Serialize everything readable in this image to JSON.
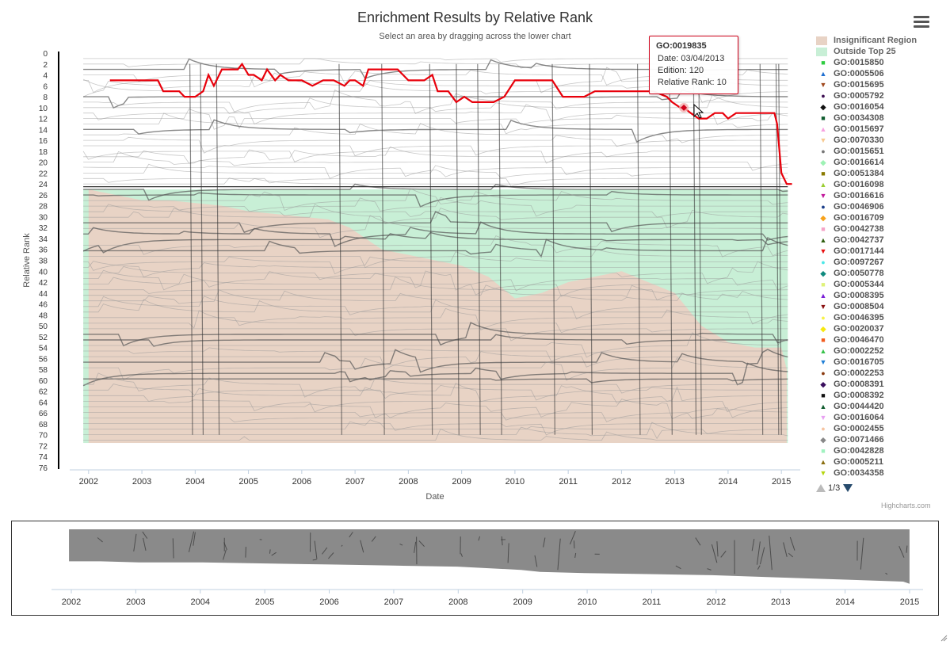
{
  "title": "Enrichment Results by Relative Rank",
  "subtitle": "Select an area by dragging across the lower chart",
  "credits": "Highcharts.com",
  "tooltip": {
    "title": "GO:0019835",
    "date": "Date: 03/04/2013",
    "edition": "Edition: 120",
    "rank": "Relative Rank: 10"
  },
  "legend": {
    "bands": [
      {
        "name": "Insignificant Region",
        "color": "#e8d3c5"
      },
      {
        "name": "Outside Top 25",
        "color": "#c8efd6"
      }
    ],
    "items": [
      {
        "name": "GO:0015850",
        "symbol": "■",
        "color": "#2ecc40"
      },
      {
        "name": "GO:0005506",
        "symbol": "▲",
        "color": "#1f6fd1"
      },
      {
        "name": "GO:0015695",
        "symbol": "▼",
        "color": "#a0491e"
      },
      {
        "name": "GO:0005792",
        "symbol": "●",
        "color": "#3d0f52"
      },
      {
        "name": "GO:0016054",
        "symbol": "◆",
        "color": "#111111"
      },
      {
        "name": "GO:0034308",
        "symbol": "■",
        "color": "#0f5c2e"
      },
      {
        "name": "GO:0015697",
        "symbol": "▲",
        "color": "#f7a1e0"
      },
      {
        "name": "GO:0070330",
        "symbol": "▼",
        "color": "#f7c98f"
      },
      {
        "name": "GO:0015651",
        "symbol": "●",
        "color": "#777777"
      },
      {
        "name": "GO:0016614",
        "symbol": "◆",
        "color": "#9ef2b5"
      },
      {
        "name": "GO:0051384",
        "symbol": "■",
        "color": "#8a7a00"
      },
      {
        "name": "GO:0016098",
        "symbol": "▲",
        "color": "#9acd32"
      },
      {
        "name": "GO:0016616",
        "symbol": "▼",
        "color": "#c2189b"
      },
      {
        "name": "GO:0046906",
        "symbol": "●",
        "color": "#1c3f8a"
      },
      {
        "name": "GO:0016709",
        "symbol": "◆",
        "color": "#f7a21b"
      },
      {
        "name": "GO:0042738",
        "symbol": "■",
        "color": "#f5a3c7"
      },
      {
        "name": "GO:0042737",
        "symbol": "▲",
        "color": "#2f5e0f"
      },
      {
        "name": "GO:0017144",
        "symbol": "▼",
        "color": "#e81010"
      },
      {
        "name": "GO:0097267",
        "symbol": "●",
        "color": "#4de8e8"
      },
      {
        "name": "GO:0050778",
        "symbol": "◆",
        "color": "#0f8a7e"
      },
      {
        "name": "GO:0005344",
        "symbol": "■",
        "color": "#dff279"
      },
      {
        "name": "GO:0008395",
        "symbol": "▲",
        "color": "#7a1fd6"
      },
      {
        "name": "GO:0008504",
        "symbol": "▼",
        "color": "#8a1010"
      },
      {
        "name": "GO:0046395",
        "symbol": "●",
        "color": "#f7f24a"
      },
      {
        "name": "GO:0020037",
        "symbol": "◆",
        "color": "#f7e80f"
      },
      {
        "name": "GO:0046470",
        "symbol": "■",
        "color": "#f25c1f"
      },
      {
        "name": "GO:0002252",
        "symbol": "▲",
        "color": "#37c24a"
      },
      {
        "name": "GO:0016705",
        "symbol": "▼",
        "color": "#1f7fd6"
      },
      {
        "name": "GO:0002253",
        "symbol": "●",
        "color": "#8a3a0f"
      },
      {
        "name": "GO:0008391",
        "symbol": "◆",
        "color": "#3a0f5e"
      },
      {
        "name": "GO:0008392",
        "symbol": "■",
        "color": "#111111"
      },
      {
        "name": "GO:0044420",
        "symbol": "▲",
        "color": "#0f5c2e"
      },
      {
        "name": "GO:0016064",
        "symbol": "▼",
        "color": "#e8a1f2"
      },
      {
        "name": "GO:0002455",
        "symbol": "●",
        "color": "#f7c4a1"
      },
      {
        "name": "GO:0071466",
        "symbol": "◆",
        "color": "#888888"
      },
      {
        "name": "GO:0042828",
        "symbol": "■",
        "color": "#a1f2c0"
      },
      {
        "name": "GO:0005211",
        "symbol": "▲",
        "color": "#8a6e0f"
      },
      {
        "name": "GO:0034358",
        "symbol": "▼",
        "color": "#b5d60f"
      }
    ],
    "pager": "1/3"
  },
  "chart_data": [
    {
      "type": "line",
      "title": "Enrichment Results by Relative Rank",
      "subtitle": "Select an area by dragging across the lower chart",
      "xlabel": "Date",
      "ylabel": "Relative Rank",
      "xlim": [
        2001.75,
        2015.25
      ],
      "ylim": [
        0,
        76
      ],
      "y_reversed": true,
      "x_ticks": [
        "2002",
        "2003",
        "2004",
        "2005",
        "2006",
        "2007",
        "2008",
        "2009",
        "2010",
        "2011",
        "2012",
        "2013",
        "2014",
        "2015"
      ],
      "y_ticks": [
        0,
        2,
        4,
        6,
        8,
        10,
        12,
        14,
        16,
        18,
        20,
        22,
        24,
        26,
        28,
        30,
        32,
        34,
        36,
        38,
        40,
        42,
        44,
        46,
        48,
        50,
        52,
        54,
        56,
        58,
        60,
        62,
        64,
        66,
        68,
        70,
        72,
        74,
        76
      ],
      "highlighted_series": {
        "name": "GO:0019835",
        "color": "#e8000b",
        "x": [
          2002.4,
          2002.6,
          2003.0,
          2003.3,
          2003.4,
          2003.7,
          2003.8,
          2004.0,
          2004.15,
          2004.25,
          2004.35,
          2004.5,
          2004.8,
          2004.88,
          2005.0,
          2005.1,
          2005.25,
          2005.35,
          2005.5,
          2005.6,
          2005.75,
          2005.9,
          2006.0,
          2006.2,
          2006.4,
          2006.6,
          2006.8,
          2006.9,
          2007.0,
          2007.15,
          2007.25,
          2007.5,
          2007.8,
          2008.0,
          2008.3,
          2008.45,
          2008.55,
          2008.75,
          2008.9,
          2009.05,
          2009.2,
          2009.4,
          2009.6,
          2009.8,
          2010.0,
          2010.4,
          2010.7,
          2010.9,
          2011.0,
          2011.3,
          2011.5,
          2011.8,
          2012.0,
          2012.3,
          2012.6,
          2012.85,
          2012.95,
          2013.1,
          2013.17,
          2013.3,
          2013.45,
          2013.6,
          2013.75,
          2013.9,
          2014.0,
          2014.15,
          2014.3,
          2014.5,
          2014.8,
          2014.87,
          2014.92,
          2015.0,
          2015.1,
          2015.2
        ],
        "y": [
          5,
          5,
          5,
          5,
          7,
          7,
          8,
          8,
          7,
          4,
          6,
          3,
          3,
          2,
          4,
          4,
          5,
          3,
          5,
          4,
          5,
          5,
          5,
          6,
          5,
          5,
          6,
          5,
          5,
          6,
          3,
          3,
          3,
          5,
          5,
          4,
          7,
          7,
          9,
          8,
          9,
          9,
          9,
          8,
          5,
          5,
          5,
          8,
          8,
          8,
          7,
          7,
          7,
          7,
          7,
          8,
          9,
          10,
          10,
          11,
          12,
          12,
          11,
          11,
          12,
          11,
          11,
          11,
          11,
          11,
          13,
          22,
          24,
          24
        ]
      },
      "bands": [
        {
          "name": "Outside Top 25",
          "from": 25
        },
        {
          "name": "Insignificant Region",
          "boundary_x": [
            2002.0,
            2002.5,
            2003.0,
            2003.5,
            2004.0,
            2004.5,
            2005.0,
            2005.5,
            2006.0,
            2006.5,
            2006.9,
            2007.5,
            2008.0,
            2008.5,
            2009.0,
            2009.5,
            2010.0,
            2010.5,
            2011.0,
            2011.5,
            2012.0,
            2012.5,
            2013.0,
            2013.5,
            2014.0,
            2014.5,
            2015.0,
            2015.1
          ],
          "boundary_rank": [
            25,
            26,
            27,
            27,
            27.5,
            28,
            29,
            29.5,
            30,
            30.5,
            32,
            36,
            37,
            38,
            39,
            41,
            45,
            44,
            42,
            41,
            40,
            42,
            44,
            50,
            53,
            54,
            54,
            58
          ]
        }
      ],
      "end_rank_x": [
        2002.0,
        2002.5,
        2003.0,
        2003.5,
        2004.0,
        2004.5,
        2005.0,
        2005.5,
        2006.0,
        2006.5,
        2007.0,
        2007.5,
        2008.0,
        2008.5,
        2009.0,
        2009.5,
        2010.0,
        2010.5,
        2011.0,
        2011.5,
        2012.0,
        2012.5,
        2013.0,
        2013.5,
        2014.0,
        2014.5,
        2015.0,
        2015.1
      ],
      "end_rank_y": [
        71,
        71,
        71,
        71,
        71,
        71,
        71,
        71,
        71,
        71,
        71,
        71,
        71,
        71,
        71,
        71,
        71,
        71,
        71,
        71,
        71,
        71,
        71,
        71,
        71,
        71,
        71,
        71
      ]
    },
    {
      "type": "area",
      "title": "",
      "xlim": [
        2001.75,
        2015.25
      ],
      "x_ticks": [
        "2002",
        "2003",
        "2004",
        "2005",
        "2006",
        "2007",
        "2008",
        "2009",
        "2010",
        "2011",
        "2012",
        "2013",
        "2014",
        "2015"
      ],
      "x": [
        2001.9,
        2002.4,
        2003.0,
        2004.0,
        2005.0,
        2006.0,
        2007.0,
        2008.0,
        2009.0,
        2009.3,
        2010.0,
        2011.0,
        2012.0,
        2013.0,
        2014.0,
        2015.0,
        2015.1
      ],
      "y": [
        30,
        30,
        31,
        31,
        32,
        33,
        34,
        35,
        38,
        40,
        41,
        42,
        43,
        45,
        47,
        49,
        51
      ]
    }
  ]
}
